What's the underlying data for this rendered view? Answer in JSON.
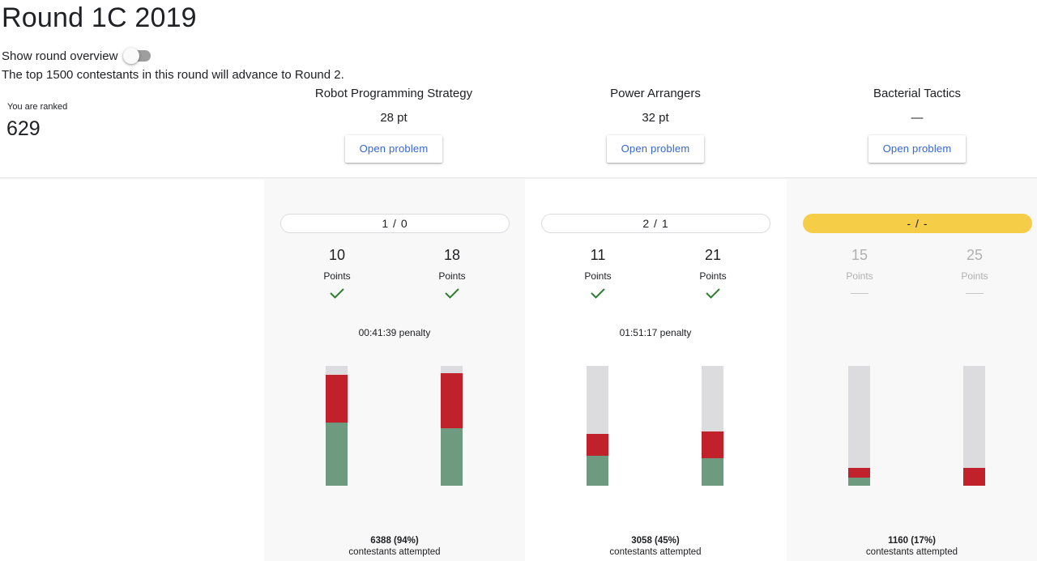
{
  "page": {
    "title": "Round 1C 2019"
  },
  "overview": {
    "label": "Show round overview",
    "enabled": false
  },
  "advance_note": "The top 1500 contestants in this round will advance to Round 2.",
  "rank": {
    "label": "You are ranked",
    "value": "629"
  },
  "problems": [
    {
      "name": "Robot Programming Strategy",
      "score": "28 pt",
      "button": "Open problem",
      "status": "1 / 0",
      "status_pending": false,
      "penalty": "00:41:39 penalty",
      "subtasks": [
        {
          "points": "10",
          "label": "Points",
          "solved": true,
          "stats": {
            "attempted": 1.0,
            "wrong": 0.4,
            "correct": 0.53
          }
        },
        {
          "points": "18",
          "label": "Points",
          "solved": true,
          "stats": {
            "attempted": 1.0,
            "wrong": 0.46,
            "correct": 0.48
          }
        }
      ],
      "attempts_count": "6388 (94%)",
      "attempts_label": "contestants attempted"
    },
    {
      "name": "Power Arrangers",
      "score": "32 pt",
      "button": "Open problem",
      "status": "2 / 1",
      "status_pending": false,
      "penalty": "01:51:17 penalty",
      "subtasks": [
        {
          "points": "11",
          "label": "Points",
          "solved": true,
          "stats": {
            "attempted": 1.0,
            "wrong": 0.18,
            "correct": 0.25
          }
        },
        {
          "points": "21",
          "label": "Points",
          "solved": true,
          "stats": {
            "attempted": 1.0,
            "wrong": 0.22,
            "correct": 0.23
          }
        }
      ],
      "attempts_count": "3058 (45%)",
      "attempts_label": "contestants attempted"
    },
    {
      "name": "Bacterial Tactics",
      "score": "—",
      "button": "Open problem",
      "status": "- / -",
      "status_pending": true,
      "penalty": "",
      "subtasks": [
        {
          "points": "15",
          "label": "Points",
          "solved": false,
          "stats": {
            "attempted": 1.0,
            "wrong": 0.08,
            "correct": 0.07
          }
        },
        {
          "points": "25",
          "label": "Points",
          "solved": false,
          "stats": {
            "attempted": 1.0,
            "wrong": 0.15,
            "correct": 0.0
          }
        }
      ],
      "attempts_count": "1160 (17%)",
      "attempts_label": "contestants attempted"
    }
  ],
  "colors": {
    "correct": "#6e9a80",
    "wrong": "#c0212b",
    "remaining": "#dcdcdf",
    "check": "#2e7d32",
    "pending": "#f6cd47"
  }
}
